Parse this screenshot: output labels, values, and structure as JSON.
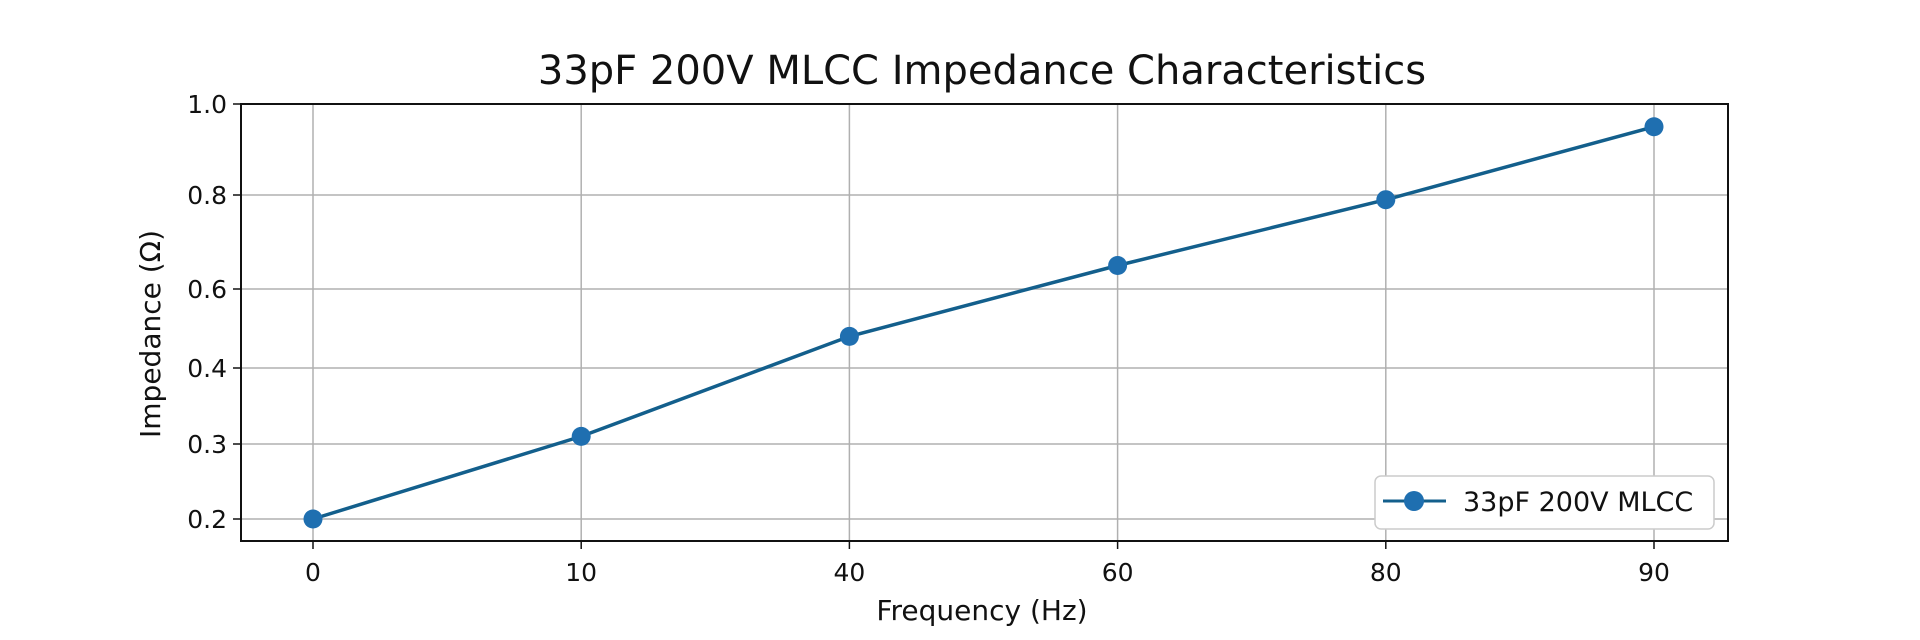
{
  "chart_data": {
    "type": "line",
    "title": "33pF 200V MLCC Impedance Characteristics",
    "xlabel": "Frequency (Hz)",
    "ylabel": "Impedance (Ω)",
    "x_scale": "categorical",
    "categories": [
      "0",
      "10",
      "40",
      "60",
      "80",
      "90"
    ],
    "y_ticks": [
      0.2,
      0.3,
      0.4,
      0.6,
      0.8,
      1.0
    ],
    "y_tick_labels": [
      "0.2",
      "0.3",
      "0.4",
      "0.6",
      "0.8",
      "1.0"
    ],
    "ylim": [
      0.2,
      1.0
    ],
    "grid": true,
    "legend_position": "bottom-right",
    "series": [
      {
        "name": "33pF 200V MLCC",
        "color": "#1f6fb0",
        "line_color": "#135f8c",
        "marker": "circle",
        "values": [
          0.2,
          0.31,
          0.48,
          0.65,
          0.79,
          0.95
        ]
      }
    ]
  }
}
